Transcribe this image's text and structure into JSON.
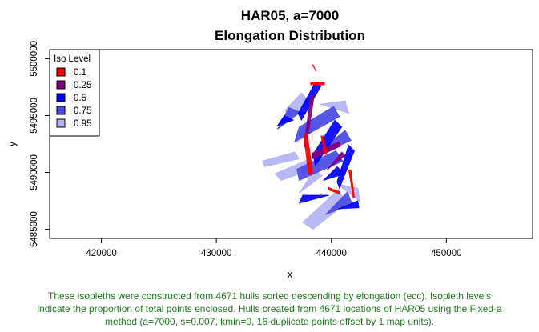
{
  "chart_data": {
    "type": "area",
    "title_line1": "HAR05, a=7000",
    "title_line2": "Elongation Distribution",
    "xlabel": "x",
    "ylabel": "y",
    "xlim": [
      415500,
      457500
    ],
    "ylim": [
      5484200,
      5500800
    ],
    "x_ticks": [
      420000,
      430000,
      440000,
      450000
    ],
    "x_tick_labels": [
      "420000",
      "430000",
      "440000",
      "450000"
    ],
    "y_ticks": [
      5485000,
      5490000,
      5495000,
      5500000
    ],
    "y_tick_labels": [
      "5485000",
      "5490000",
      "5495000",
      "5500000"
    ],
    "legend": {
      "title": "Iso Level",
      "position": "top-left",
      "entries": [
        {
          "label": "0.1",
          "color": "#ff0000"
        },
        {
          "label": "0.25",
          "color": "#800080"
        },
        {
          "label": "0.5",
          "color": "#0000ff"
        },
        {
          "label": "0.75",
          "color": "#4a4ae6"
        },
        {
          "label": "0.95",
          "color": "#b3b3f5"
        }
      ]
    },
    "series": [
      {
        "name": "0.95",
        "color": "#b3b3f5",
        "shapes": [
          [
            [
              435600,
              5489300
            ],
            [
              438500,
              5490300
            ],
            [
              437900,
              5491100
            ],
            [
              435100,
              5489900
            ]
          ],
          [
            [
              436200,
              5494800
            ],
            [
              438100,
              5496200
            ],
            [
              437400,
              5497000
            ],
            [
              436000,
              5495500
            ]
          ],
          [
            [
              437500,
              5485600
            ],
            [
              440600,
              5488500
            ],
            [
              441300,
              5487300
            ],
            [
              438400,
              5485000
            ]
          ],
          [
            [
              434200,
              5490500
            ],
            [
              437200,
              5491200
            ],
            [
              436800,
              5491800
            ],
            [
              434000,
              5491000
            ]
          ],
          [
            [
              439000,
              5496000
            ],
            [
              441500,
              5495200
            ],
            [
              441200,
              5496300
            ]
          ],
          [
            [
              440500,
              5489000
            ],
            [
              442500,
              5487400
            ],
            [
              442300,
              5488600
            ]
          ],
          [
            [
              436900,
              5492600
            ],
            [
              438700,
              5493800
            ],
            [
              438000,
              5494400
            ]
          ],
          [
            [
              437200,
              5488200
            ],
            [
              439200,
              5489700
            ],
            [
              438500,
              5490200
            ]
          ]
        ]
      },
      {
        "name": "0.75",
        "color": "#4a4ae6",
        "shapes": [
          [
            [
              436800,
              5492700
            ],
            [
              440700,
              5494900
            ],
            [
              440200,
              5495800
            ],
            [
              437200,
              5494000
            ]
          ],
          [
            [
              437200,
              5489300
            ],
            [
              441000,
              5491000
            ],
            [
              440400,
              5491900
            ],
            [
              437000,
              5490300
            ]
          ],
          [
            [
              439500,
              5486300
            ],
            [
              441800,
              5487200
            ],
            [
              441400,
              5488300
            ]
          ],
          [
            [
              435300,
              5493800
            ],
            [
              437300,
              5495300
            ],
            [
              436300,
              5495700
            ]
          ],
          [
            [
              438300,
              5491300
            ],
            [
              441700,
              5492800
            ],
            [
              441200,
              5493700
            ]
          ]
        ]
      },
      {
        "name": "0.5",
        "color": "#0000ff",
        "shapes": [
          [
            [
              438600,
              5490600
            ],
            [
              440900,
              5494000
            ],
            [
              440300,
              5494600
            ],
            [
              438400,
              5491600
            ]
          ],
          [
            [
              437400,
              5494600
            ],
            [
              439100,
              5497600
            ],
            [
              438600,
              5497900
            ],
            [
              437100,
              5495200
            ]
          ],
          [
            [
              440700,
              5488600
            ],
            [
              442000,
              5491900
            ],
            [
              441500,
              5492400
            ],
            [
              440500,
              5489200
            ]
          ],
          [
            [
              437200,
              5487300
            ],
            [
              439800,
              5488000
            ],
            [
              437500,
              5488000
            ]
          ],
          [
            [
              435300,
              5494100
            ],
            [
              436700,
              5494600
            ],
            [
              435900,
              5495000
            ]
          ],
          [
            [
              440600,
              5486800
            ],
            [
              442400,
              5486900
            ],
            [
              442300,
              5487500
            ]
          ],
          [
            [
              439300,
              5489300
            ],
            [
              441200,
              5489900
            ],
            [
              440500,
              5490500
            ]
          ]
        ]
      },
      {
        "name": "0.25",
        "color": "#800080",
        "shapes": [
          [
            [
              438400,
              5491200
            ],
            [
              440800,
              5492300
            ],
            [
              440700,
              5492700
            ],
            [
              438300,
              5491700
            ]
          ],
          [
            [
              437800,
              5492100
            ],
            [
              438500,
              5496700
            ],
            [
              438200,
              5496800
            ],
            [
              437600,
              5492300
            ]
          ],
          [
            [
              439600,
              5490200
            ],
            [
              441200,
              5491500
            ],
            [
              440900,
              5491800
            ]
          ]
        ]
      },
      {
        "name": "0.1",
        "color": "#ff0000",
        "shapes": [
          [
            [
              438300,
              5499500
            ],
            [
              438700,
              5498900
            ],
            [
              438600,
              5499000
            ],
            [
              438450,
              5499400
            ]
          ],
          [
            [
              437600,
              5493400
            ],
            [
              438000,
              5489800
            ],
            [
              438400,
              5489900
            ],
            [
              437900,
              5493400
            ]
          ],
          [
            [
              438200,
              5497700
            ],
            [
              439400,
              5497700
            ],
            [
              439400,
              5497900
            ],
            [
              438200,
              5497900
            ]
          ],
          [
            [
              441500,
              5490200
            ],
            [
              441900,
              5487800
            ],
            [
              442000,
              5487800
            ],
            [
              441700,
              5490200
            ]
          ],
          [
            [
              439700,
              5488500
            ],
            [
              440700,
              5488100
            ],
            [
              440700,
              5488300
            ],
            [
              439700,
              5488700
            ]
          ],
          [
            [
              439100,
              5493200
            ],
            [
              439400,
              5491600
            ],
            [
              439600,
              5491600
            ],
            [
              439300,
              5493200
            ]
          ]
        ]
      }
    ]
  },
  "caption": {
    "line1": "These isopleths were constructed from 4671 hulls sorted descending by elongation (ecc). Isopleth levels",
    "line2": "indicate the proportion of total points enclosed. Hulls created from 4671 locations of HAR05 using the Fixed-a",
    "line3": "method (a=7000, s=0.007, kmin=0, 16 duplicate points offset by 1 map units)."
  }
}
